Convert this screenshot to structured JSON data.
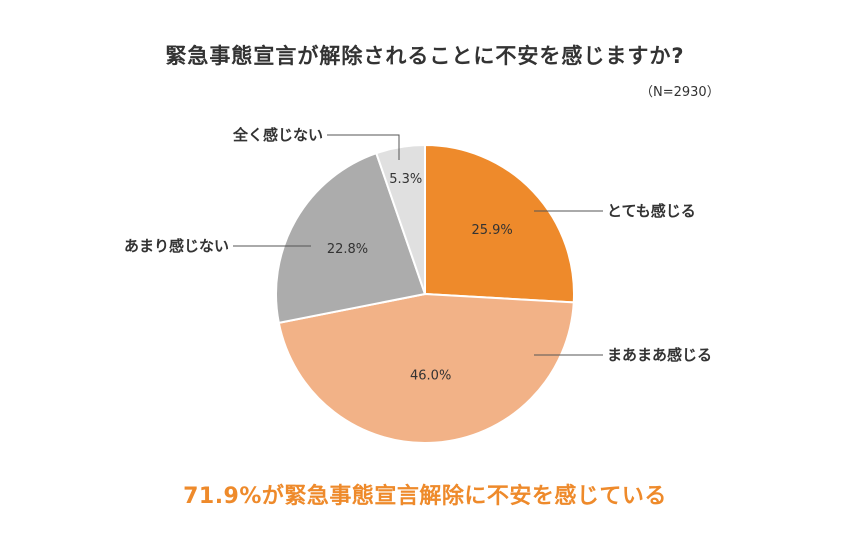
{
  "title": "緊急事態宣言が解除されることに不安を感じますか?",
  "note": "（N=2930）",
  "footer": "71.9%が緊急事態宣言解除に不安を感じている",
  "chart_data": {
    "type": "pie",
    "title": "緊急事態宣言が解除されることに不安を感じますか?",
    "n_label": "（N=2930）",
    "unit": "%",
    "slices": [
      {
        "label": "とても感じる",
        "value": 25.9,
        "display": "25.9%",
        "color": "#ee8a2b"
      },
      {
        "label": "まあまあ感じる",
        "value": 46.0,
        "display": "46.0%",
        "color": "#f2b287"
      },
      {
        "label": "あまり感じない",
        "value": 22.8,
        "display": "22.8%",
        "color": "#acacac"
      },
      {
        "label": "全く感じない",
        "value": 5.3,
        "display": "5.3%",
        "color": "#e0e0e0"
      }
    ],
    "start": "12 o'clock",
    "direction": "clockwise",
    "legend": "callout labels with leader lines"
  }
}
